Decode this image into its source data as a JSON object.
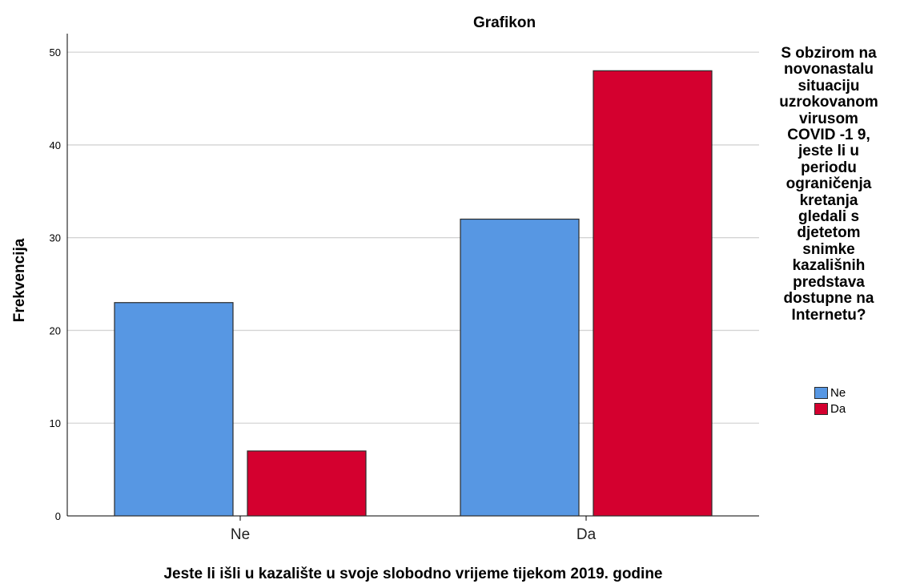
{
  "chart_data": {
    "type": "bar",
    "title": "Grafikon",
    "xlabel": "Jeste li išli u kazalište u svoje slobodno vrijeme tijekom 2019. godine",
    "ylabel": "Frekvencija",
    "categories": [
      "Ne",
      "Da"
    ],
    "series": [
      {
        "name": "Ne",
        "values": [
          23,
          32
        ],
        "color": "#5797E3"
      },
      {
        "name": "Da",
        "values": [
          7,
          48
        ],
        "color": "#D4002F"
      }
    ],
    "ylim": [
      0,
      52
    ],
    "yticks": [
      0,
      10,
      20,
      30,
      40,
      50
    ],
    "grid": true,
    "legend": {
      "placement": "right",
      "title_lines": [
        "S obzirom na",
        "novonastalu",
        "situaciju",
        "uzrokovanom",
        "virusom",
        "COVID -1 9,",
        "jeste li u",
        "periodu",
        "ograničenja",
        "kretanja",
        "gledali s",
        "djetetom",
        "snimke",
        "kazališnih",
        "predstava",
        "dostupne na",
        "Internetu?"
      ]
    }
  }
}
